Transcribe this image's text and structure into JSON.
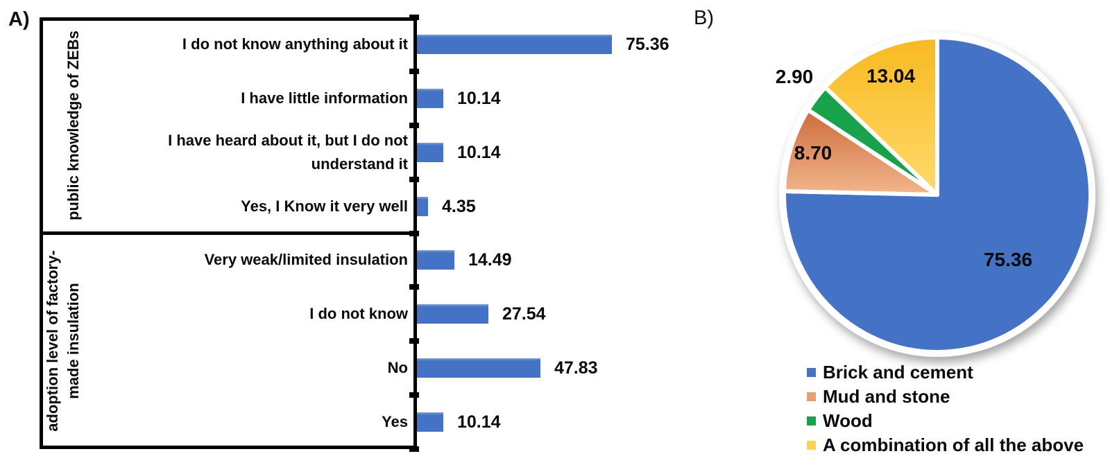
{
  "panel_a": {
    "letter": "A)"
  },
  "panel_b": {
    "letter": "B)"
  },
  "chart_data": [
    {
      "type": "bar",
      "orientation": "horizontal",
      "panel": "A",
      "bar_color": "#4472C4",
      "xlim": [
        0,
        100
      ],
      "grid": false,
      "groups": [
        {
          "label": "public knowledge of ZEBs",
          "label_lines": [
            "public knowledge of ZEBs"
          ],
          "categories": [
            {
              "lines": [
                "I do not know anything about it"
              ],
              "value": 75.36,
              "value_label": "75.36"
            },
            {
              "lines": [
                "I have little information"
              ],
              "value": 10.14,
              "value_label": "10.14"
            },
            {
              "lines": [
                "I have heard about it, but I do not",
                "understand it"
              ],
              "value": 10.14,
              "value_label": "10.14"
            },
            {
              "lines": [
                "Yes, I Know it very well"
              ],
              "value": 4.35,
              "value_label": "4.35"
            }
          ]
        },
        {
          "label": "adoption level of factory-made insulation",
          "label_lines": [
            "adoption level of factory-",
            "made insulation"
          ],
          "categories": [
            {
              "lines": [
                "Very weak/limited insulation"
              ],
              "value": 14.49,
              "value_label": "14.49"
            },
            {
              "lines": [
                "I do not know"
              ],
              "value": 27.54,
              "value_label": "27.54"
            },
            {
              "lines": [
                "No"
              ],
              "value": 47.83,
              "value_label": "47.83"
            },
            {
              "lines": [
                "Yes"
              ],
              "value": 10.14,
              "value_label": "10.14"
            }
          ]
        }
      ]
    },
    {
      "type": "pie",
      "panel": "B",
      "start_angle_deg": 0,
      "direction": "clockwise",
      "legend_position": "bottom",
      "slices": [
        {
          "label": "Brick and cement",
          "value": 75.36,
          "value_label": "75.36",
          "color": "#4472C4",
          "legend_color": "#4472C4",
          "label_inside": true
        },
        {
          "label": "Mud and stone",
          "value": 8.7,
          "value_label": "8.70",
          "color_gradient": [
            "#CE6B3B",
            "#F2B68E"
          ],
          "legend_color": "#ED9C6D",
          "label_inside": true
        },
        {
          "label": "Wood",
          "value": 2.9,
          "value_label": "2.90",
          "color": "#18A24B",
          "legend_color": "#18A24B",
          "label_inside": false
        },
        {
          "label": "A combination of all the above",
          "value": 13.04,
          "value_label": "13.04",
          "color_gradient": [
            "#F8BA20",
            "#FFDA6B"
          ],
          "legend_color": "#FFD34D",
          "label_inside": true
        }
      ]
    }
  ]
}
